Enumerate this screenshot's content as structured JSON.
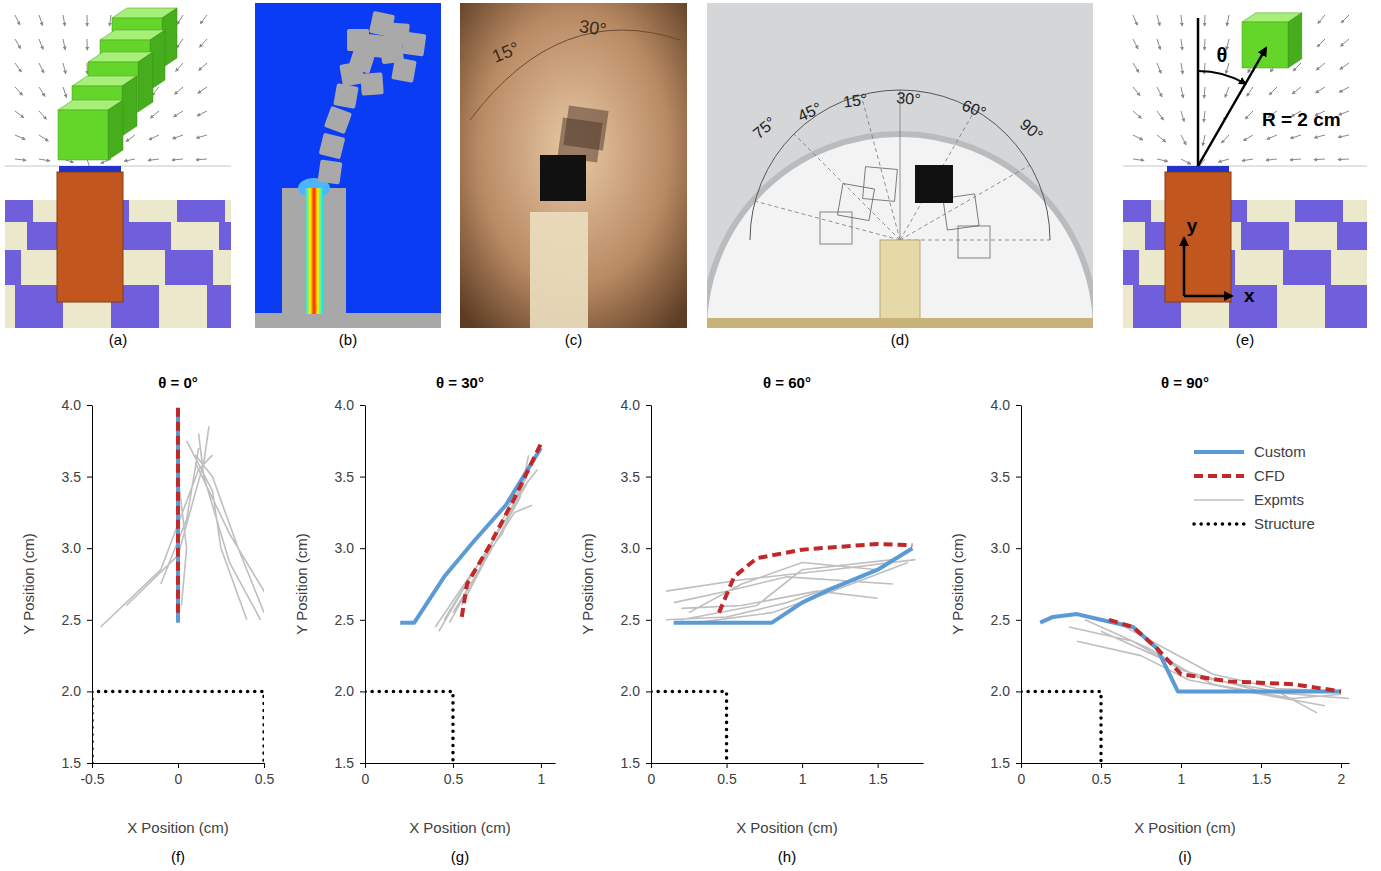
{
  "panels": [
    {
      "label": "(a)"
    },
    {
      "label": "(b)"
    },
    {
      "label": "(c)",
      "texts": [
        "15°",
        "30°"
      ]
    },
    {
      "label": "(d)",
      "texts": [
        "75°",
        "45°",
        "15°",
        "30°",
        "60°",
        "90°"
      ]
    },
    {
      "label": "(e)",
      "texts": [
        "θ",
        "R = 2 cm",
        "y",
        "x"
      ]
    }
  ],
  "chart_data": [
    {
      "type": "line",
      "title": "θ = 0°",
      "panel_label": "(f)",
      "x_label": "X Position (cm)",
      "y_label": "Y Position (cm)",
      "xlim": [
        -0.5,
        0.5
      ],
      "xticks": [
        -0.5,
        0,
        0.5
      ],
      "ylim": [
        1.5,
        4
      ],
      "yticks": [
        1.5,
        {
          "value": 2,
          "label": "2.0"
        },
        2.5,
        {
          "value": 3,
          "label": "3.0"
        },
        3.5,
        {
          "value": 4,
          "label": "4.0"
        }
      ],
      "series": [
        {
          "color": "#5b9bd5",
          "line_style": "solid",
          "x": [
            0,
            0,
            0
          ],
          "values": [
            2.48,
            3.2,
            3.95
          ]
        },
        {
          "color": "#c0282a",
          "line_style": "dashed",
          "x": [
            0,
            0,
            0
          ],
          "values": [
            2.55,
            3.3,
            4.0
          ]
        },
        {
          "color": "#bfbfbf",
          "line_style": "solid",
          "x": [
            -0.45,
            -0.1,
            0.12,
            0.2,
            null,
            -0.3,
            0.0,
            0.15,
            0.18,
            null,
            -0.1,
            0.05,
            0.12,
            null,
            0.48,
            0.3,
            0.15,
            0.12,
            null,
            0.5,
            0.35,
            0.2,
            0.1,
            null,
            0.55,
            0.3,
            0.1,
            null,
            0.4,
            0.25,
            0.2,
            0.05,
            null,
            0.02,
            0.05,
            0.0
          ],
          "values": [
            2.45,
            2.85,
            3.55,
            3.65,
            null,
            2.6,
            2.95,
            3.6,
            3.85,
            null,
            2.75,
            3.2,
            3.7,
            null,
            2.5,
            2.9,
            3.5,
            3.8,
            null,
            2.55,
            3.0,
            3.5,
            3.65,
            null,
            2.6,
            3.1,
            3.6,
            null,
            2.5,
            3.0,
            3.4,
            3.75,
            null,
            2.6,
            3.0,
            3.5
          ]
        },
        {
          "color": "#000000",
          "line_style": "dotted",
          "x": [
            -0.5,
            -0.5,
            0.5,
            0.5
          ],
          "values": [
            1.5,
            2,
            2,
            1.5
          ]
        }
      ]
    },
    {
      "type": "line",
      "title": "θ = 30°",
      "panel_label": "(g)",
      "x_label": "X Position (cm)",
      "y_label": "Y Position (cm)",
      "xlim": [
        0,
        1.08
      ],
      "xticks": [
        0,
        0.5,
        1
      ],
      "ylim": [
        1.5,
        4
      ],
      "yticks": [
        1.5,
        {
          "value": 2,
          "label": "2.0"
        },
        2.5,
        {
          "value": 3,
          "label": "3.0"
        },
        3.5,
        {
          "value": 4,
          "label": "4.0"
        }
      ],
      "series": [
        {
          "color": "#5b9bd5",
          "line_style": "solid",
          "x": [
            0.2,
            0.28,
            0.45,
            0.62,
            0.8,
            1.0
          ],
          "values": [
            2.48,
            2.48,
            2.8,
            3.05,
            3.3,
            3.7
          ]
        },
        {
          "color": "#c0282a",
          "line_style": "dashed",
          "x": [
            0.55,
            0.58,
            0.7,
            0.85,
            1.0
          ],
          "values": [
            2.52,
            2.75,
            3.0,
            3.35,
            3.73
          ]
        },
        {
          "color": "#bfbfbf",
          "line_style": "solid",
          "x": [
            0.42,
            0.6,
            0.8,
            0.92,
            null,
            0.45,
            0.65,
            0.85,
            0.95,
            null,
            0.5,
            0.7,
            0.88,
            0.93,
            null,
            0.55,
            0.72,
            0.85,
            0.95,
            null,
            0.4,
            0.62,
            0.78,
            0.9,
            null,
            0.48,
            0.68,
            0.82,
            0.98
          ],
          "values": [
            2.42,
            2.8,
            3.2,
            3.45,
            null,
            2.5,
            2.9,
            3.3,
            3.6,
            null,
            2.55,
            2.95,
            3.35,
            3.65,
            null,
            2.6,
            3.0,
            3.25,
            3.3,
            null,
            2.45,
            2.85,
            3.1,
            3.5,
            null,
            2.48,
            2.92,
            3.3,
            3.55
          ]
        },
        {
          "color": "#000000",
          "line_style": "dotted",
          "x": [
            0,
            0.5,
            0.5
          ],
          "values": [
            2,
            2,
            1.5
          ]
        }
      ]
    },
    {
      "type": "line",
      "title": "θ = 60°",
      "panel_label": "(h)",
      "x_label": "X Position (cm)",
      "y_label": "Y Position (cm)",
      "xlim": [
        0,
        1.8
      ],
      "xticks": [
        0,
        0.5,
        1,
        1.5
      ],
      "ylim": [
        1.5,
        4
      ],
      "yticks": [
        1.5,
        {
          "value": 2,
          "label": "2.0"
        },
        2.5,
        {
          "value": 3,
          "label": "3.0"
        },
        3.5,
        {
          "value": 4,
          "label": "4.0"
        }
      ],
      "series": [
        {
          "color": "#5b9bd5",
          "line_style": "solid",
          "x": [
            0.15,
            0.8,
            1.0,
            1.2,
            1.5,
            1.73
          ],
          "values": [
            2.48,
            2.48,
            2.62,
            2.72,
            2.85,
            3.0
          ]
        },
        {
          "color": "#c0282a",
          "line_style": "dashed",
          "x": [
            0.45,
            0.55,
            0.7,
            1.0,
            1.5,
            1.73
          ],
          "values": [
            2.55,
            2.8,
            2.93,
            2.99,
            3.03,
            3.02
          ]
        },
        {
          "color": "#bfbfbf",
          "line_style": "solid",
          "x": [
            0.1,
            0.6,
            1.2,
            1.75,
            null,
            0.2,
            0.7,
            1.0,
            1.6,
            null,
            0.25,
            0.6,
            1.0,
            1.5,
            null,
            0.3,
            0.8,
            1.2,
            1.7,
            null,
            0.15,
            0.5,
            0.9,
            1.6,
            null,
            0.2,
            0.6,
            1.1,
            1.5,
            null,
            0.1,
            0.5,
            0.9,
            1.4
          ],
          "values": [
            2.7,
            2.78,
            2.85,
            2.92,
            null,
            2.5,
            2.6,
            2.85,
            2.92,
            null,
            2.55,
            2.75,
            2.9,
            2.85,
            null,
            2.48,
            2.55,
            2.7,
            2.9,
            null,
            2.62,
            2.7,
            2.8,
            2.75,
            null,
            2.58,
            2.6,
            2.7,
            2.65,
            null,
            2.5,
            2.52,
            2.62,
            2.8
          ]
        },
        {
          "color": "#000000",
          "line_style": "dotted",
          "x": [
            0,
            0.5,
            0.5
          ],
          "values": [
            2,
            2,
            1.5
          ]
        }
      ]
    },
    {
      "type": "line",
      "title": "θ = 90°",
      "panel_label": "(i)",
      "x_label": "X Position (cm)",
      "y_label": "Y Position (cm)",
      "xlim": [
        0,
        2.05
      ],
      "xticks": [
        0,
        0.5,
        1,
        1.5,
        2
      ],
      "ylim": [
        1.5,
        4
      ],
      "yticks": [
        1.5,
        {
          "value": 2,
          "label": "2.0"
        },
        2.5,
        {
          "value": 3,
          "label": "3.0"
        },
        3.5,
        {
          "value": 4,
          "label": "4.0"
        }
      ],
      "legend": "upper right",
      "series": [
        {
          "name": "Custom",
          "color": "#5b9bd5",
          "line_style": "solid",
          "x": [
            0.12,
            0.2,
            0.35,
            0.5,
            0.7,
            0.85,
            0.98,
            1.5,
            2.0
          ],
          "values": [
            2.48,
            2.52,
            2.54,
            2.5,
            2.45,
            2.3,
            2.0,
            2.0,
            2.0
          ]
        },
        {
          "name": "CFD",
          "color": "#c0282a",
          "line_style": "dashed",
          "x": [
            0.55,
            0.7,
            0.85,
            1.0,
            1.3,
            1.7,
            2.0
          ],
          "values": [
            2.5,
            2.45,
            2.3,
            2.12,
            2.07,
            2.05,
            2.0
          ]
        },
        {
          "name": "Expmts",
          "color": "#bfbfbf",
          "line_style": "solid",
          "x": [
            0.3,
            0.7,
            1.0,
            1.5,
            2.05,
            null,
            0.4,
            0.8,
            1.1,
            1.6,
            1.85,
            null,
            0.5,
            0.9,
            1.2,
            1.7,
            2.0,
            null,
            0.35,
            0.75,
            1.05,
            1.5,
            1.9,
            null,
            0.6,
            0.9,
            1.2,
            1.6,
            2.0
          ],
          "values": [
            2.45,
            2.35,
            2.15,
            2.0,
            1.95,
            null,
            2.5,
            2.3,
            2.1,
            2.0,
            1.85,
            null,
            2.42,
            2.22,
            2.05,
            1.95,
            1.98,
            null,
            2.35,
            2.25,
            2.08,
            1.98,
            1.9,
            null,
            2.48,
            2.3,
            2.12,
            2.02,
            2.0
          ]
        },
        {
          "name": "Structure",
          "color": "#000000",
          "line_style": "dotted",
          "x": [
            0,
            0.5,
            0.5
          ],
          "values": [
            2,
            2,
            1.5
          ]
        }
      ]
    }
  ]
}
